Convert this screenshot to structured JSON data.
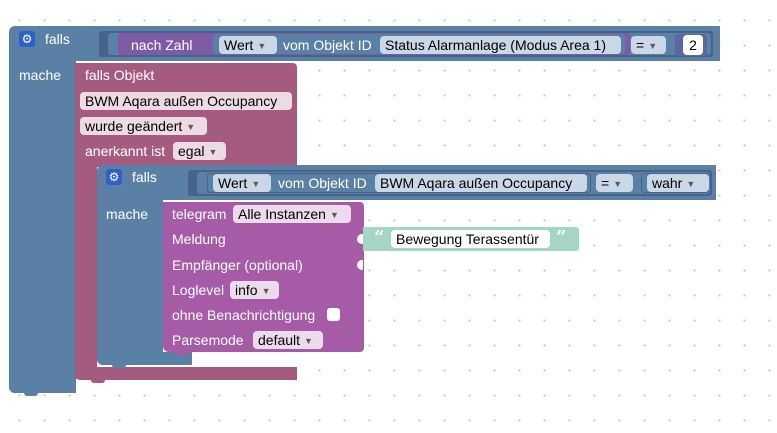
{
  "outer_if": {
    "if_label": "falls",
    "do_label": "mache",
    "number_label": "nach Zahl",
    "prop_dropdown": "Wert",
    "from_object_label": "vom Objekt ID",
    "object_id": "Status Alarmanlage (Modus Area 1)",
    "operator": "=",
    "value": "2"
  },
  "trigger": {
    "title": "falls Objekt",
    "object_id": "BWM Aqara außen Occupancy",
    "condition_dropdown": "wurde geändert",
    "ack_label": "anerkannt ist",
    "ack_dropdown": "egal"
  },
  "inner_if": {
    "if_label": "falls",
    "do_label": "mache",
    "prop_dropdown": "Wert",
    "from_object_label": "vom Objekt ID",
    "object_id": "BWM Aqara außen Occupancy",
    "operator": "=",
    "value_dropdown": "wahr"
  },
  "telegram": {
    "title": "telegram",
    "instance_dropdown": "Alle Instanzen",
    "message_label": "Meldung",
    "message_text": "Bewegung Terassentür",
    "recipient_label": "Empfänger (optional)",
    "loglevel_label": "Loglevel",
    "loglevel_dropdown": "info",
    "silent_label": "ohne Benachrichtigung",
    "parsemode_label": "Parsemode",
    "parsemode_dropdown": "default"
  },
  "icons": {
    "gear": "gear-icon",
    "dropdown_arrow": "▼",
    "quote_open": "“",
    "quote_close": "”"
  },
  "colors": {
    "logic_block": "#5b80a5",
    "trigger_block": "#a55b80",
    "telegram_block": "#a55ba5",
    "text_block": "#a5d6c4",
    "gear": "#2f5fc9"
  }
}
